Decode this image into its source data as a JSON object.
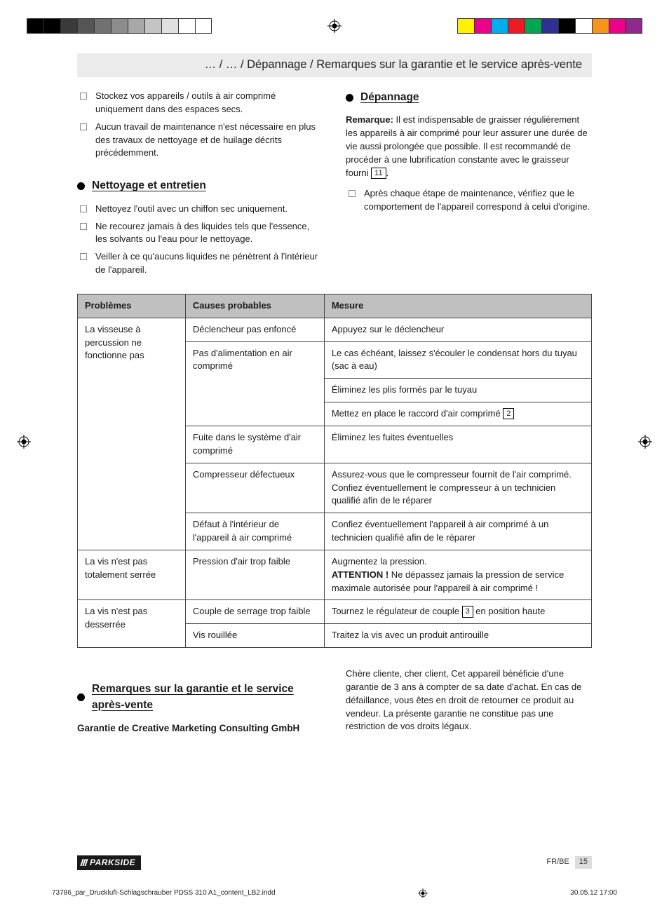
{
  "colorbar": {
    "left_swatches": [
      "#000000",
      "#000000",
      "#3a3a3a",
      "#555555",
      "#717171",
      "#8c8c8c",
      "#a8a8a8",
      "#c4c4c4",
      "#e0e0e0",
      "#ffffff",
      "#ffffff"
    ],
    "right_swatches": [
      "#fff200",
      "#ec008c",
      "#00aeef",
      "#ed1c24",
      "#00a651",
      "#2e3192",
      "#000000",
      "#ffffff",
      "#f7941d",
      "#ec008c",
      "#92278f"
    ]
  },
  "breadcrumb": "… / … / Dépannage / Remarques sur la garantie et le service après-vente",
  "left_col": {
    "intro_items": [
      "Stockez vos appareils / outils à air comprimé uniquement dans des espaces secs.",
      "Aucun travail de maintenance n'est nécessaire en plus des travaux de nettoyage et de huilage décrits précédemment."
    ],
    "section_title": "Nettoyage et entretien",
    "section_items": [
      "Nettoyez l'outil avec un chiffon sec uniquement.",
      "Ne recourez jamais à des liquides tels que l'essence, les solvants ou l'eau pour le nettoyage.",
      "Veiller à ce qu'aucuns liquides ne pénètrent à l'intérieur de l'appareil."
    ]
  },
  "right_col": {
    "section_title": "Dépannage",
    "note_label": "Remarque:",
    "note_text_1": " Il est indispensable de graisser régulièrement les appareils à air comprimé pour leur assurer une durée de vie aussi prolongée que possible. Il est recommandé de procéder à une lubrification constante avec le graisseur fourni ",
    "note_box": "11",
    "note_text_2": ".",
    "after_items": [
      "Après chaque étape de maintenance, vérifiez que le comportement de l'appareil correspond à celui d'origine."
    ]
  },
  "table": {
    "headers": [
      "Problèmes",
      "Causes probables",
      "Mesure"
    ],
    "groups": [
      {
        "problem": "La visseuse à percussion ne fonctionne pas",
        "rows": [
          {
            "cause": "Déclencheur pas enfoncé",
            "measures": [
              "Appuyez sur le déclencheur"
            ]
          },
          {
            "cause": "Pas d'alimentation en air comprimé",
            "measures": [
              "Le cas échéant, laissez s'écouler le condensat hors du tuyau (sac à eau)",
              "Éliminez les plis formés par le tuyau",
              {
                "pre": "Mettez en place le raccord d'air comprimé ",
                "box": "2",
                "post": ""
              }
            ]
          },
          {
            "cause": "Fuite dans le système d'air comprimé",
            "measures": [
              "Éliminez les fuites éventuelles"
            ]
          },
          {
            "cause": "Compresseur défectueux",
            "measures": [
              "Assurez-vous que le compresseur fournit de l'air comprimé. Confiez éventuellement le compresseur à un technicien qualifié afin de le réparer"
            ]
          },
          {
            "cause": "Défaut à l'intérieur de l'appareil à air comprimé",
            "measures": [
              "Confiez éventuellement l'appareil à air comprimé à un technicien qualifié afin de le réparer"
            ]
          }
        ]
      },
      {
        "problem": "La vis n'est pas totalement serrée",
        "rows": [
          {
            "cause": "Pression d'air trop faible",
            "measures": [
              {
                "line1": "Augmentez la pression.",
                "strong": "ATTENTION !",
                "rest": " Ne dépassez jamais la pression de service maximale autorisée pour l'appareil à air comprimé !"
              }
            ]
          }
        ]
      },
      {
        "problem": "La vis n'est pas desserrée",
        "rows": [
          {
            "cause": "Couple de serrage trop faible",
            "measures": [
              {
                "pre": "Tournez le régulateur de couple ",
                "box": "3",
                "post": " en position haute"
              }
            ]
          },
          {
            "cause": "Vis rouillée",
            "measures": [
              "Traitez la vis avec un produit antirouille"
            ]
          }
        ]
      }
    ]
  },
  "bottom": {
    "left_title": "Remarques sur la garantie et le service après-vente",
    "left_sub": "Garantie de Creative Marketing Consulting GmbH",
    "right_para": "Chère cliente, cher client, Cet appareil bénéficie d'une garantie de 3 ans à compter de sa date d'achat. En cas de défaillance, vous êtes en droit de retourner ce produit au vendeur. La présente garantie ne constitue pas une restriction de vos droits légaux."
  },
  "footer": {
    "brand": "PARKSIDE",
    "lang": "FR/BE",
    "page": "15"
  },
  "slug": {
    "file": "73786_par_Druckluft-Schlagschrauber PDSS 310 A1_content_LB2.indd",
    "date": "30.05.12   17:00"
  }
}
